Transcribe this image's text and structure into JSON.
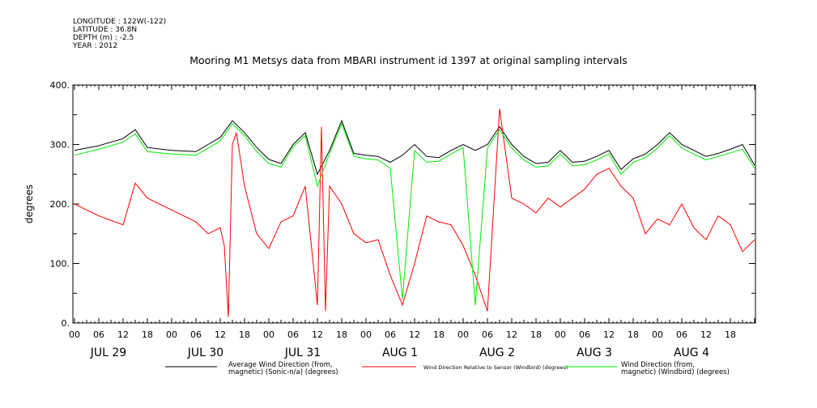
{
  "header": {
    "longitude": "LONGITUDE : 122W(-122)",
    "latitude": "LATITUDE : 36.8N",
    "depth": "DEPTH (m) : -2.5",
    "year": "YEAR : 2012"
  },
  "chart_data": {
    "type": "line",
    "title": "Mooring M1 Metsys data from MBARI instrument id 1397 at original sampling intervals",
    "ylabel": "degrees",
    "ylim": [
      0,
      400
    ],
    "yticks": [
      "0.",
      "100.",
      "200.",
      "300.",
      "400."
    ],
    "hour_labels": [
      "00",
      "06",
      "12",
      "18"
    ],
    "days": [
      "JUL 29",
      "JUL 30",
      "JUL 31",
      "AUG  1",
      "AUG  2",
      "AUG  3",
      "AUG  4"
    ],
    "xlim_hours": [
      0,
      168
    ],
    "series": [
      {
        "name": "Average Wind Direction (from, magnetic) (Sonic-n/a) (degrees)",
        "legend_lines": [
          "Average Wind Direction (from,",
          "magnetic) (Sonic-n/a) (degrees)"
        ],
        "color": "#000000",
        "x": [
          0,
          6,
          12,
          15,
          18,
          24,
          30,
          33,
          36,
          39,
          42,
          45,
          48,
          51,
          54,
          57,
          60,
          63,
          66,
          69,
          72,
          75,
          78,
          81,
          84,
          87,
          90,
          93,
          96,
          99,
          102,
          105,
          108,
          111,
          114,
          117,
          120,
          123,
          126,
          129,
          132,
          135,
          138,
          141,
          144,
          147,
          150,
          153,
          156,
          159,
          162,
          165,
          168
        ],
        "values": [
          290,
          298,
          310,
          325,
          295,
          290,
          288,
          300,
          312,
          340,
          320,
          295,
          275,
          268,
          300,
          320,
          250,
          290,
          340,
          285,
          282,
          280,
          270,
          282,
          300,
          280,
          278,
          290,
          300,
          290,
          300,
          330,
          300,
          280,
          268,
          270,
          290,
          270,
          272,
          280,
          290,
          258,
          276,
          284,
          300,
          320,
          300,
          290,
          280,
          285,
          292,
          300,
          265
        ]
      },
      {
        "name": "Wind Direction Relative to Sensor (Windbird) (degrees)",
        "legend_lines": [
          "Wind Direction Relative to Sensor (Windbird) (degrees)"
        ],
        "color": "#ff0000",
        "x": [
          0,
          6,
          12,
          15,
          18,
          24,
          30,
          33,
          36,
          37,
          38,
          39,
          40,
          42,
          45,
          48,
          51,
          54,
          57,
          60,
          61,
          62,
          63,
          66,
          69,
          72,
          75,
          78,
          81,
          84,
          87,
          90,
          93,
          96,
          99,
          102,
          105,
          108,
          111,
          114,
          117,
          120,
          123,
          126,
          129,
          132,
          135,
          138,
          141,
          144,
          147,
          150,
          153,
          156,
          159,
          162,
          165,
          168
        ],
        "values": [
          200,
          180,
          165,
          235,
          210,
          190,
          170,
          150,
          160,
          130,
          10,
          300,
          320,
          230,
          150,
          125,
          170,
          180,
          230,
          30,
          330,
          20,
          230,
          200,
          150,
          135,
          140,
          80,
          30,
          100,
          180,
          170,
          165,
          130,
          80,
          20,
          360,
          210,
          200,
          185,
          210,
          195,
          210,
          225,
          250,
          260,
          230,
          210,
          150,
          175,
          165,
          200,
          160,
          140,
          180,
          165,
          120,
          140
        ]
      },
      {
        "name": "Wind Direction (from, magnetic) (Windbird) (degrees)",
        "legend_lines": [
          "Wind Direction (from,",
          "magnetic) (Windbird) (degrees)"
        ],
        "color": "#00ee00",
        "x": [
          0,
          6,
          12,
          15,
          18,
          24,
          30,
          33,
          36,
          39,
          42,
          45,
          48,
          51,
          54,
          57,
          60,
          63,
          66,
          69,
          72,
          75,
          78,
          81,
          84,
          87,
          90,
          93,
          96,
          99,
          102,
          105,
          108,
          111,
          114,
          117,
          120,
          123,
          126,
          129,
          132,
          135,
          138,
          141,
          144,
          147,
          150,
          153,
          156,
          159,
          162,
          165,
          168
        ],
        "values": [
          282,
          292,
          304,
          318,
          288,
          284,
          282,
          294,
          306,
          335,
          315,
          288,
          268,
          262,
          296,
          315,
          230,
          285,
          335,
          280,
          276,
          274,
          260,
          40,
          290,
          270,
          272,
          284,
          295,
          30,
          294,
          325,
          294,
          274,
          262,
          264,
          284,
          264,
          266,
          274,
          284,
          250,
          270,
          278,
          294,
          315,
          294,
          284,
          274,
          280,
          286,
          292,
          260
        ]
      }
    ]
  }
}
